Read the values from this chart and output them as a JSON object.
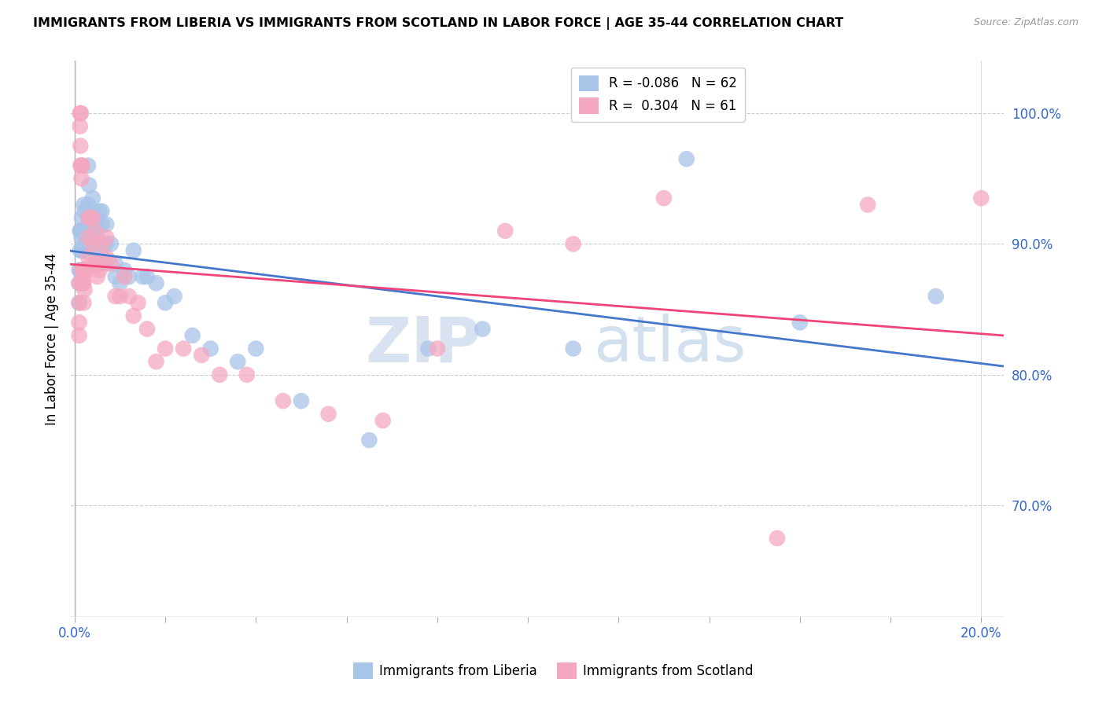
{
  "title": "IMMIGRANTS FROM LIBERIA VS IMMIGRANTS FROM SCOTLAND IN LABOR FORCE | AGE 35-44 CORRELATION CHART",
  "source": "Source: ZipAtlas.com",
  "ylabel": "In Labor Force | Age 35-44",
  "ylim": [
    0.615,
    1.04
  ],
  "xlim": [
    -0.001,
    0.205
  ],
  "R_liberia": -0.086,
  "N_liberia": 62,
  "R_scotland": 0.304,
  "N_scotland": 61,
  "color_liberia": "#a8c4e8",
  "color_scotland": "#f4a8c0",
  "line_liberia": "#4477cc",
  "line_scotland": "#ee4477",
  "watermark_zip": "ZIP",
  "watermark_atlas": "atlas",
  "legend_label1": "Immigrants from Liberia",
  "legend_label2": "Immigrants from Scotland",
  "liberia_x": [
    0.001,
    0.001,
    0.001,
    0.0012,
    0.0012,
    0.0013,
    0.0013,
    0.0015,
    0.0015,
    0.0016,
    0.0016,
    0.0017,
    0.0018,
    0.002,
    0.002,
    0.002,
    0.0022,
    0.0022,
    0.0025,
    0.003,
    0.003,
    0.003,
    0.003,
    0.0032,
    0.0032,
    0.0035,
    0.004,
    0.004,
    0.0042,
    0.005,
    0.005,
    0.0055,
    0.006,
    0.006,
    0.006,
    0.007,
    0.007,
    0.007,
    0.008,
    0.009,
    0.009,
    0.01,
    0.011,
    0.012,
    0.013,
    0.015,
    0.016,
    0.018,
    0.02,
    0.022,
    0.026,
    0.03,
    0.036,
    0.04,
    0.05,
    0.065,
    0.078,
    0.09,
    0.11,
    0.135,
    0.16,
    0.19
  ],
  "liberia_y": [
    0.88,
    0.87,
    0.855,
    0.91,
    0.895,
    0.91,
    0.88,
    0.905,
    0.88,
    0.92,
    0.895,
    0.875,
    0.88,
    0.93,
    0.91,
    0.895,
    0.925,
    0.9,
    0.905,
    0.96,
    0.93,
    0.915,
    0.9,
    0.945,
    0.925,
    0.91,
    0.935,
    0.91,
    0.895,
    0.92,
    0.905,
    0.925,
    0.925,
    0.915,
    0.895,
    0.915,
    0.9,
    0.885,
    0.9,
    0.885,
    0.875,
    0.87,
    0.88,
    0.875,
    0.895,
    0.875,
    0.875,
    0.87,
    0.855,
    0.86,
    0.83,
    0.82,
    0.81,
    0.82,
    0.78,
    0.75,
    0.82,
    0.835,
    0.82,
    0.965,
    0.84,
    0.86
  ],
  "scotland_x": [
    0.001,
    0.001,
    0.001,
    0.001,
    0.0012,
    0.0012,
    0.0013,
    0.0013,
    0.0014,
    0.0015,
    0.0015,
    0.0016,
    0.0016,
    0.0017,
    0.0018,
    0.0019,
    0.002,
    0.002,
    0.002,
    0.0022,
    0.0022,
    0.003,
    0.003,
    0.003,
    0.003,
    0.0035,
    0.004,
    0.004,
    0.004,
    0.0045,
    0.005,
    0.005,
    0.0055,
    0.006,
    0.006,
    0.007,
    0.007,
    0.008,
    0.009,
    0.01,
    0.011,
    0.012,
    0.013,
    0.014,
    0.016,
    0.018,
    0.02,
    0.024,
    0.028,
    0.032,
    0.038,
    0.046,
    0.056,
    0.068,
    0.08,
    0.095,
    0.11,
    0.13,
    0.155,
    0.175,
    0.2
  ],
  "scotland_y": [
    0.87,
    0.855,
    0.84,
    0.83,
    1.0,
    0.99,
    0.975,
    0.96,
    1.0,
    0.96,
    0.95,
    0.88,
    0.87,
    0.96,
    0.88,
    0.87,
    0.88,
    0.87,
    0.855,
    0.88,
    0.865,
    0.92,
    0.905,
    0.89,
    0.88,
    0.92,
    0.92,
    0.9,
    0.885,
    0.91,
    0.885,
    0.875,
    0.88,
    0.9,
    0.885,
    0.905,
    0.89,
    0.885,
    0.86,
    0.86,
    0.875,
    0.86,
    0.845,
    0.855,
    0.835,
    0.81,
    0.82,
    0.82,
    0.815,
    0.8,
    0.8,
    0.78,
    0.77,
    0.765,
    0.82,
    0.91,
    0.9,
    0.935,
    0.675,
    0.93,
    0.935
  ]
}
